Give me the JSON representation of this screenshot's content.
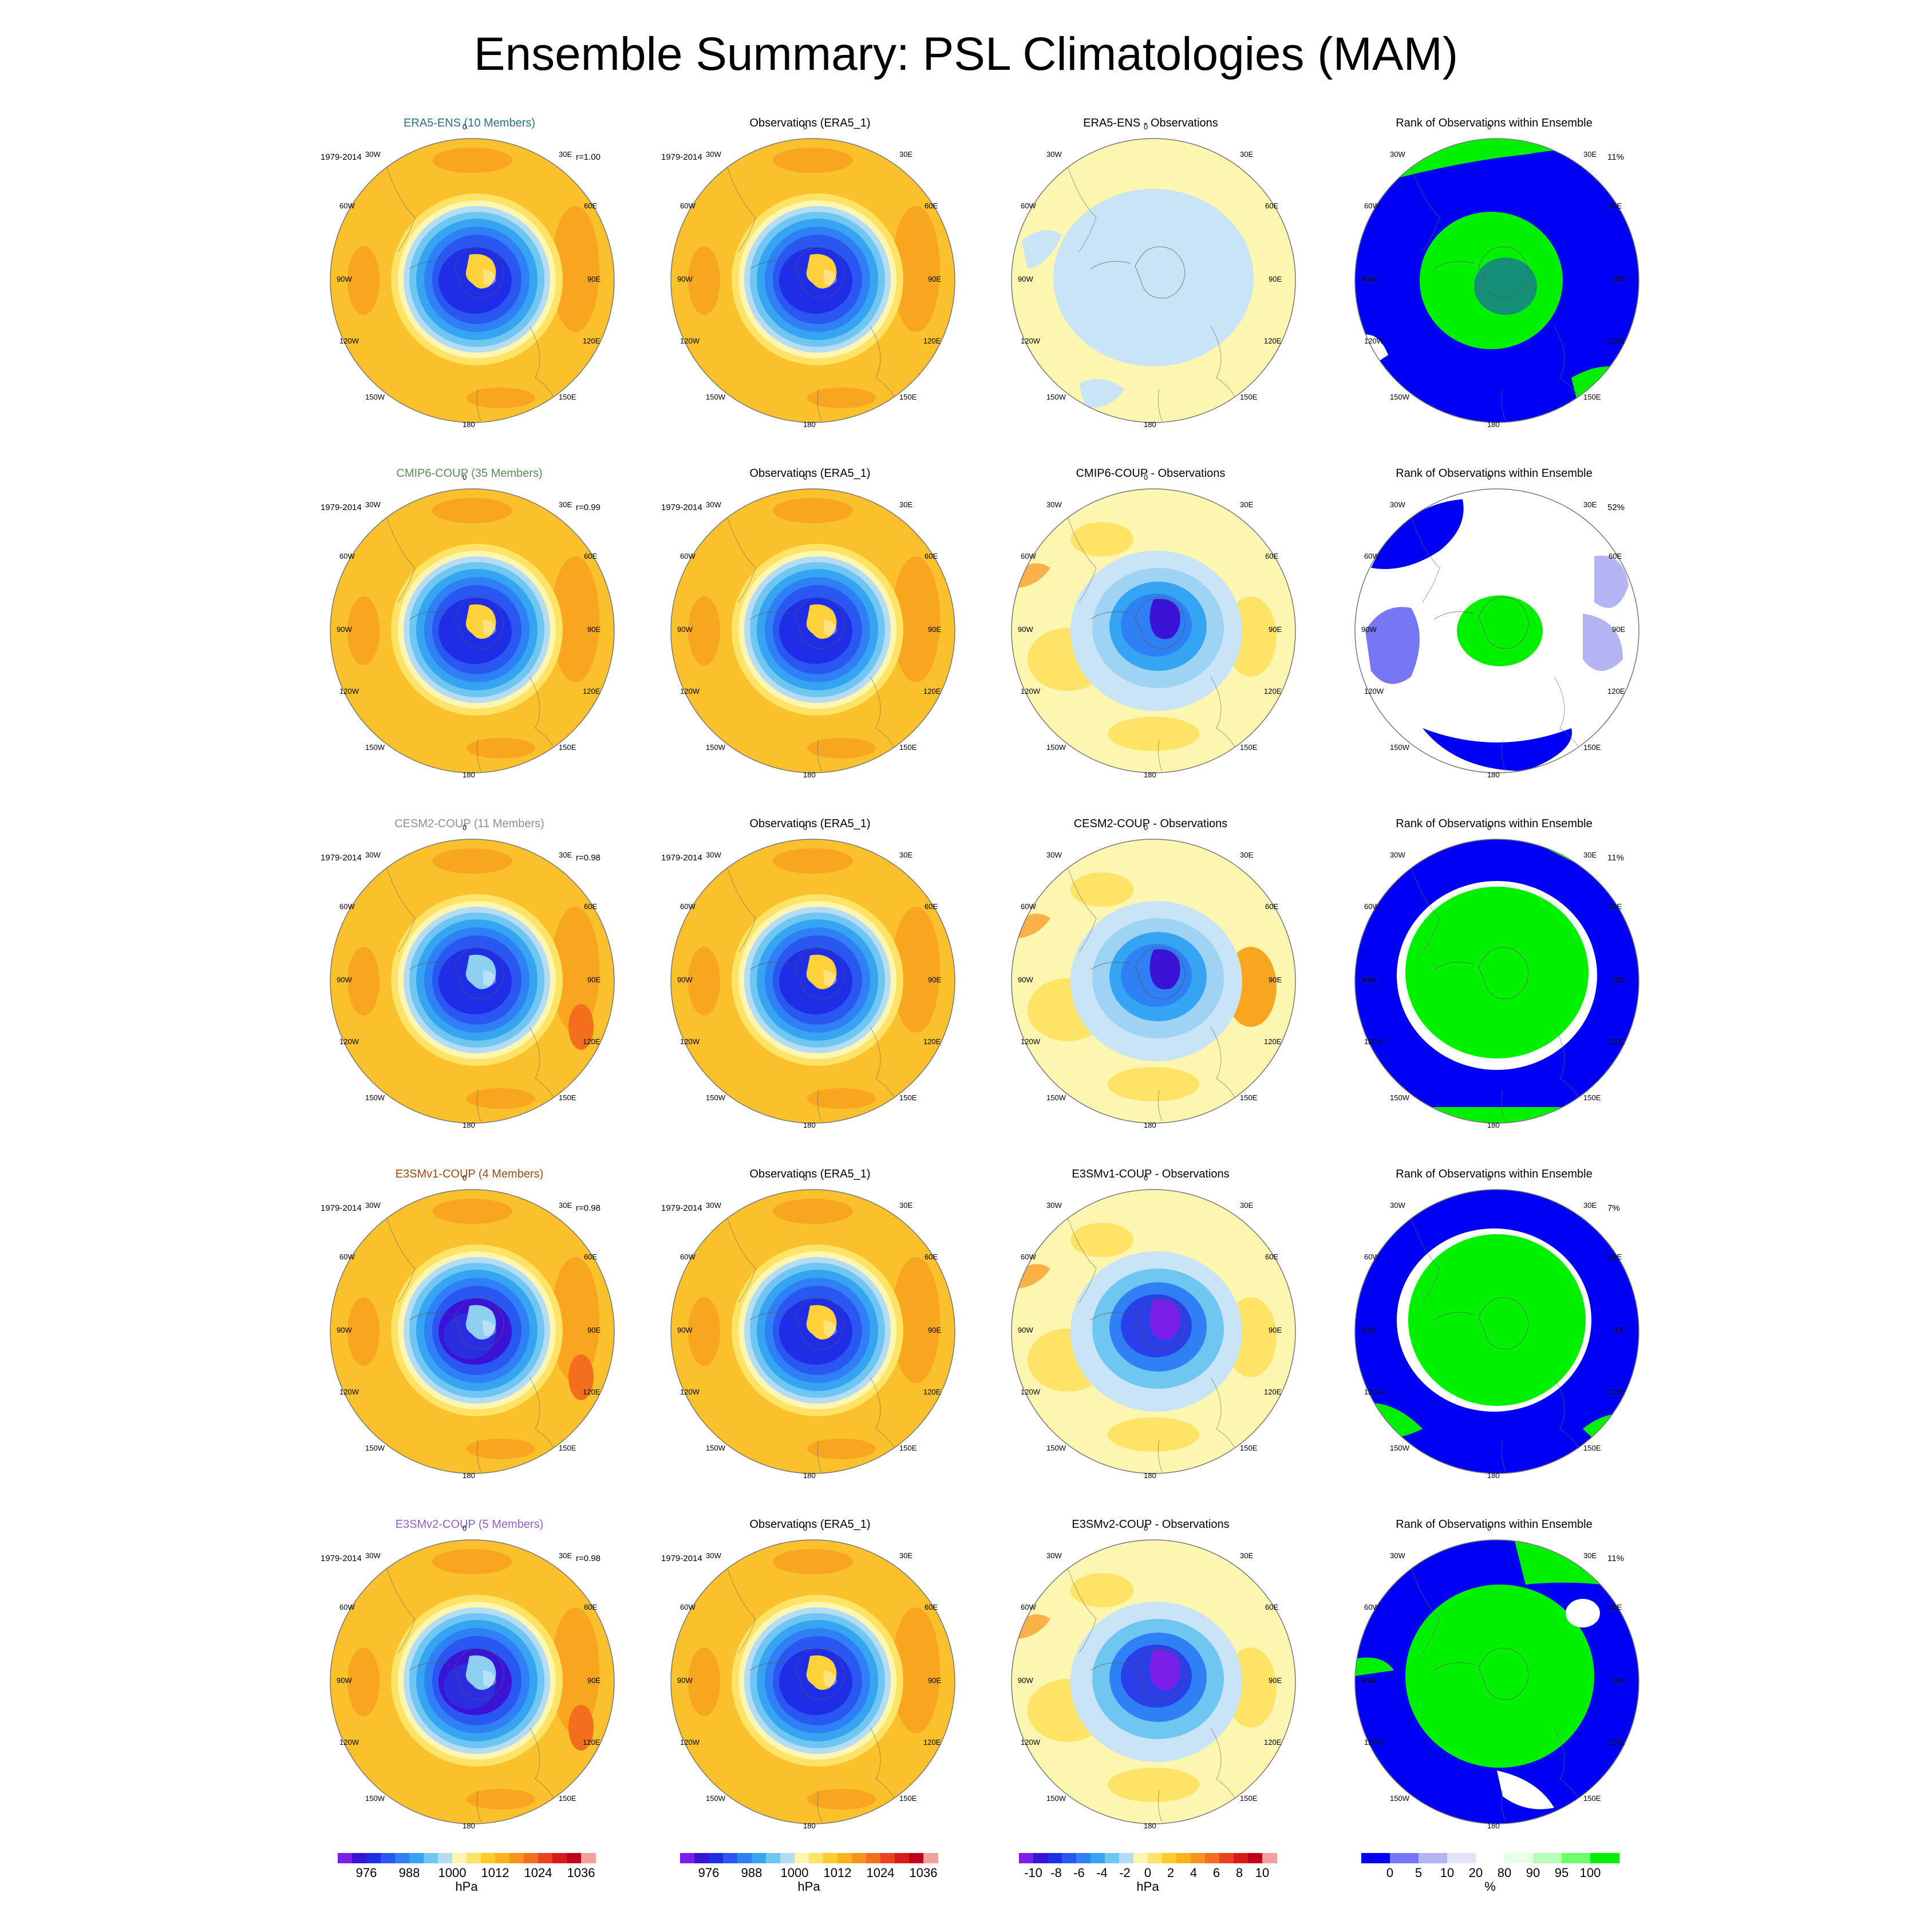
{
  "title": "Ensemble Summary: PSL Climatologies (MAM)",
  "coord_labels": [
    "0",
    "30E",
    "60E",
    "90E",
    "120E",
    "150E",
    "180",
    "150W",
    "120W",
    "90W",
    "60W",
    "30W"
  ],
  "rows": [
    {
      "title": "ERA5-ENS (10 Members)",
      "title_color": "#2e6f86",
      "period": "1979-2014",
      "corr": "r=1.00",
      "obs_title": "Observations (ERA5_1)",
      "diff_title": "ERA5-ENS - Observations",
      "rank_title": "Rank of Observations within Ensemble",
      "rank_pct": "11%"
    },
    {
      "title": "CMIP6-COUP (35 Members)",
      "title_color": "#5c8a5c",
      "period": "1979-2014",
      "corr": "r=0.99",
      "obs_title": "Observations (ERA5_1)",
      "diff_title": "CMIP6-COUP - Observations",
      "rank_title": "Rank of Observations within Ensemble",
      "rank_pct": "52%"
    },
    {
      "title": "CESM2-COUP (11 Members)",
      "title_color": "#8f8f8f",
      "period": "1979-2014",
      "corr": "r=0.98",
      "obs_title": "Observations (ERA5_1)",
      "diff_title": "CESM2-COUP - Observations",
      "rank_title": "Rank of Observations within Ensemble",
      "rank_pct": "11%"
    },
    {
      "title": "E3SMv1-COUP (4 Members)",
      "title_color": "#9c4a14",
      "period": "1979-2014",
      "corr": "r=0.98",
      "obs_title": "Observations (ERA5_1)",
      "diff_title": "E3SMv1-COUP - Observations",
      "rank_title": "Rank of Observations within Ensemble",
      "rank_pct": "7%"
    },
    {
      "title": "E3SMv2-COUP (5 Members)",
      "title_color": "#8a63c9",
      "period": "1979-2014",
      "corr": "r=0.98",
      "obs_title": "Observations (ERA5_1)",
      "diff_title": "E3SMv2-COUP - Observations",
      "rank_title": "Rank of Observations within Ensemble",
      "rank_pct": "11%"
    }
  ],
  "colorbars": [
    {
      "labels": [
        "976",
        "988",
        "1000",
        "1012",
        "1024",
        "1036"
      ],
      "unit": "hPa",
      "colors": [
        "#7a1fe8",
        "#3a13d6",
        "#1f2ee6",
        "#2a57f2",
        "#2f7ff5",
        "#35a4f2",
        "#6fc6f1",
        "#b4dcf5",
        "#fdf6b0",
        "#ffe366",
        "#fccb2c",
        "#fbb21c",
        "#f8941b",
        "#f36f1e",
        "#ea4220",
        "#d91a1a",
        "#c2001a",
        "#f3a0a0"
      ]
    },
    {
      "labels": [
        "976",
        "988",
        "1000",
        "1012",
        "1024",
        "1036"
      ],
      "unit": "hPa",
      "colors": [
        "#7a1fe8",
        "#3a13d6",
        "#1f2ee6",
        "#2a57f2",
        "#2f7ff5",
        "#35a4f2",
        "#6fc6f1",
        "#b4dcf5",
        "#fdf6b0",
        "#ffe366",
        "#fccb2c",
        "#fbb21c",
        "#f8941b",
        "#f36f1e",
        "#ea4220",
        "#d91a1a",
        "#c2001a",
        "#f3a0a0"
      ]
    },
    {
      "labels": [
        "-10",
        "-8",
        "-6",
        "-4",
        "-2",
        "0",
        "2",
        "4",
        "6",
        "8",
        "10"
      ],
      "unit": "hPa",
      "colors": [
        "#7a1fe8",
        "#3a13d6",
        "#1f2ee6",
        "#2a57f2",
        "#2f7ff5",
        "#35a4f2",
        "#6fc6f1",
        "#b4dcf5",
        "#fdf6b0",
        "#ffe366",
        "#fccb2c",
        "#fbb21c",
        "#f8941b",
        "#f36f1e",
        "#ea4220",
        "#d91a1a",
        "#c2001a",
        "#f3a0a0"
      ]
    },
    {
      "labels": [
        "0",
        "5",
        "10",
        "20",
        "80",
        "90",
        "95",
        "100"
      ],
      "unit": "%",
      "colors": [
        "#0000f5",
        "#7777f5",
        "#b4b4f5",
        "#e4e4f8",
        "#ffffff",
        "#e6ffe6",
        "#b8ffb8",
        "#6cff6c",
        "#00f000"
      ]
    }
  ],
  "chart_data": {
    "type": "heatmap",
    "projection": "south polar stereographic",
    "season": "MAM",
    "variable": "PSL",
    "columns": [
      "ensemble mean climatology",
      "observations",
      "difference",
      "rank of observations"
    ],
    "pressure_colorbar_ticks_hPa": [
      976,
      988,
      1000,
      1012,
      1024,
      1036
    ],
    "difference_colorbar_ticks_hPa": [
      -10,
      -8,
      -6,
      -4,
      -2,
      0,
      2,
      4,
      6,
      8,
      10
    ],
    "rank_colorbar_ticks_percent": [
      0,
      5,
      10,
      20,
      80,
      90,
      95,
      100
    ],
    "rows": [
      {
        "ensemble": "ERA5-ENS",
        "members": 10,
        "r": 1.0,
        "rank_percent": 11
      },
      {
        "ensemble": "CMIP6-COUP",
        "members": 35,
        "r": 0.99,
        "rank_percent": 52
      },
      {
        "ensemble": "CESM2-COUP",
        "members": 11,
        "r": 0.98,
        "rank_percent": 11
      },
      {
        "ensemble": "E3SMv1-COUP",
        "members": 4,
        "r": 0.98,
        "rank_percent": 7
      },
      {
        "ensemble": "E3SMv2-COUP",
        "members": 5,
        "r": 0.98,
        "rank_percent": 11
      }
    ]
  }
}
